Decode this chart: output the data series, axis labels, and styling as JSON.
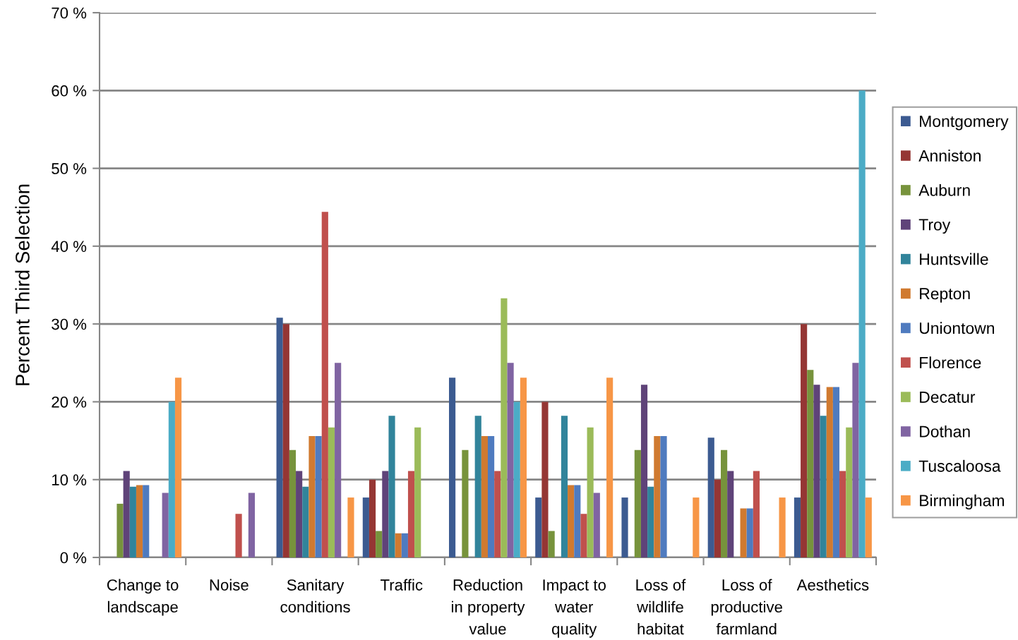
{
  "chart_data": {
    "type": "bar",
    "ylabel": "Percent Third Selection",
    "categories": [
      "Change to\nlandscape",
      "Noise",
      "Sanitary\nconditions",
      "Traffic",
      "Reduction\nin property\nvalue",
      "Impact to\nwater\nquality",
      "Loss of\nwildlife\nhabitat",
      "Loss of\nproductive\nfarmland",
      "Aesthetics"
    ],
    "series": [
      {
        "name": "Montgomery",
        "color": "#3c5b91",
        "values": [
          0,
          0,
          30.8,
          7.7,
          23.1,
          7.7,
          7.7,
          15.4,
          7.7
        ]
      },
      {
        "name": "Anniston",
        "color": "#953634",
        "values": [
          0,
          0,
          30.0,
          10.0,
          0,
          20.0,
          0,
          10.0,
          30.0
        ]
      },
      {
        "name": "Auburn",
        "color": "#77933c",
        "values": [
          6.9,
          0,
          13.8,
          3.4,
          13.8,
          3.4,
          13.8,
          13.8,
          24.1
        ]
      },
      {
        "name": "Troy",
        "color": "#5f4379",
        "values": [
          11.1,
          0,
          11.1,
          11.1,
          0,
          0,
          22.2,
          11.1,
          22.2
        ]
      },
      {
        "name": "Huntsville",
        "color": "#31849b",
        "values": [
          9.1,
          0,
          9.1,
          18.2,
          18.2,
          18.2,
          9.1,
          0,
          18.2
        ]
      },
      {
        "name": "Repton",
        "color": "#d07a30",
        "values": [
          9.3,
          0,
          15.6,
          3.1,
          15.6,
          9.3,
          15.6,
          6.3,
          21.9
        ]
      },
      {
        "name": "Uniontown",
        "color": "#4f7bbf",
        "values": [
          9.3,
          0,
          15.6,
          3.1,
          15.6,
          9.3,
          15.6,
          6.3,
          21.9
        ]
      },
      {
        "name": "Florence",
        "color": "#c0504d",
        "values": [
          0,
          5.6,
          44.4,
          11.1,
          11.1,
          5.6,
          0,
          11.1,
          11.1
        ]
      },
      {
        "name": "Decatur",
        "color": "#9bbb59",
        "values": [
          0,
          0,
          16.7,
          16.7,
          33.3,
          16.7,
          0,
          0,
          16.7
        ]
      },
      {
        "name": "Dothan",
        "color": "#8064a2",
        "values": [
          8.3,
          8.3,
          25.0,
          0,
          25.0,
          8.3,
          0,
          0,
          25.0
        ]
      },
      {
        "name": "Tuscaloosa",
        "color": "#4bacc6",
        "values": [
          20.0,
          0,
          0,
          0,
          20.0,
          0,
          0,
          0,
          60.0
        ]
      },
      {
        "name": "Birmingham",
        "color": "#f79646",
        "values": [
          23.1,
          0,
          7.7,
          0,
          23.1,
          23.1,
          7.7,
          7.7,
          7.7
        ]
      }
    ],
    "ylim": [
      0,
      70
    ],
    "yticks": [
      {
        "value": 0,
        "label": "0 %"
      },
      {
        "value": 10,
        "label": "10 %"
      },
      {
        "value": 20,
        "label": "20 %"
      },
      {
        "value": 30,
        "label": "30 %"
      },
      {
        "value": 40,
        "label": "40 %"
      },
      {
        "value": 50,
        "label": "50 %"
      },
      {
        "value": 60,
        "label": "60 %"
      },
      {
        "value": 70,
        "label": "70 %"
      }
    ],
    "grid": "y",
    "legend": "right"
  }
}
